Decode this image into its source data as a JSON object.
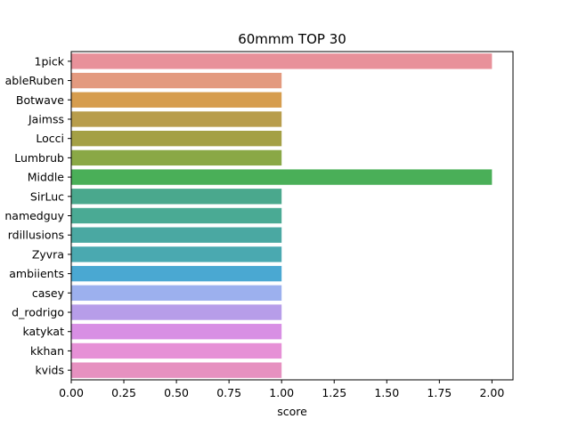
{
  "chart_data": {
    "type": "bar",
    "orientation": "horizontal",
    "title": "60mmm TOP 30",
    "xlabel": "score",
    "ylabel": "",
    "xlim": [
      0,
      2.1
    ],
    "xticks": [
      "0.00",
      "0.25",
      "0.50",
      "0.75",
      "1.00",
      "1.25",
      "1.50",
      "1.75",
      "2.00"
    ],
    "categories": [
      "1pick",
      "ableRuben",
      "Botwave",
      "Jaimss",
      "Locci",
      "Lumbrub",
      "Middle",
      "SirLuc",
      "namedguy",
      "rdillusions",
      "Zyvra",
      "ambiients",
      "casey",
      "d_rodrigo",
      "katykat",
      "kkhan",
      "kvids"
    ],
    "values": [
      2,
      1,
      1,
      1,
      1,
      1,
      2,
      1,
      1,
      1,
      1,
      1,
      1,
      1,
      1,
      1,
      1
    ],
    "colors": [
      "#e8919a",
      "#e39a7f",
      "#d69d4e",
      "#b89d4c",
      "#a4a045",
      "#8aa846",
      "#4aaf58",
      "#4aa88d",
      "#4aaa94",
      "#4aa8a2",
      "#4aa9b0",
      "#4aa8d2",
      "#9cb0ee",
      "#b79de9",
      "#d88fe4",
      "#e690d6",
      "#e691c0"
    ],
    "grid": false,
    "legend": "none"
  }
}
